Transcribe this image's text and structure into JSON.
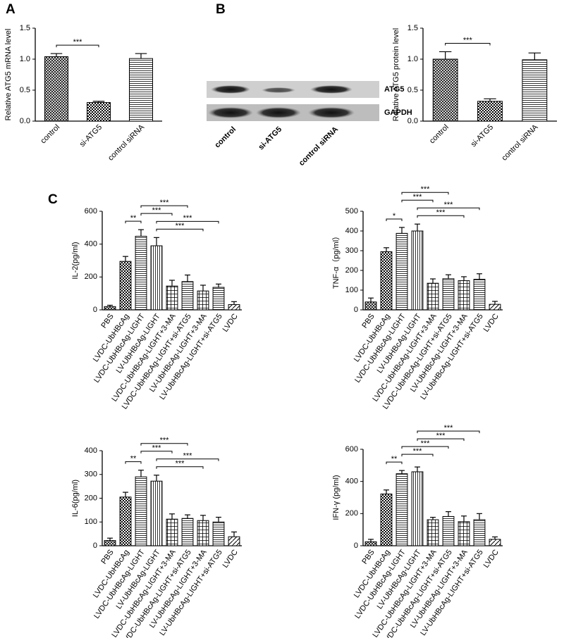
{
  "panels": [
    "A",
    "B",
    "C"
  ],
  "blot": {
    "bands": [
      "ATG5",
      "GAPDH"
    ],
    "lanes": [
      "control",
      "si-ATG5",
      "control siRNA"
    ]
  },
  "chart_data": [
    {
      "type": "bar",
      "ylabel": "Relative ATG5 mRNA level",
      "categories": [
        "control",
        "si-ATG5",
        "control siRNA"
      ],
      "values": [
        1.04,
        0.3,
        1.01
      ],
      "errors": [
        0.05,
        0.02,
        0.08
      ],
      "ylim": [
        0,
        1.5
      ],
      "yticks": [
        {
          "value": 0,
          "label": "0.0"
        },
        0.5,
        {
          "value": 1,
          "label": "1.0"
        },
        1.5
      ],
      "annotations": [
        {
          "between": [
            "control",
            "si-ATG5"
          ],
          "label": "***"
        }
      ]
    },
    {
      "type": "bar",
      "ylabel": "Relative ATG5 protein level",
      "categories": [
        "control",
        "si-ATG5",
        "control siRNA"
      ],
      "values": [
        1.0,
        0.32,
        0.99
      ],
      "errors": [
        0.12,
        0.04,
        0.11
      ],
      "ylim": [
        0,
        1.5
      ],
      "yticks": [
        {
          "value": 0,
          "label": "0.0"
        },
        0.5,
        {
          "value": 1,
          "label": "1.0"
        },
        1.5
      ],
      "annotations": [
        {
          "between": [
            "control",
            "si-ATG5"
          ],
          "label": "***"
        }
      ]
    },
    {
      "type": "bar",
      "ylabel": "IL-2(pg/ml)",
      "categories": [
        "PBS",
        "LVDC-UbHBcAg",
        "LVDC-UbHBcAg-LIGHT",
        "LV-UbHBcAg-LIGHT",
        "LVDC-UbHBcAg-LIGHT+3-MA",
        "LVDC-UbHBcAg-LIGHT+si-ATG5",
        "LV-UbHBcAg-LIGHT+3-MA",
        "LV-UbHBcAg-LIGHT+si-ATG5",
        "LVDC"
      ],
      "values": [
        20,
        295,
        448,
        390,
        145,
        172,
        115,
        137,
        32
      ],
      "errors": [
        8,
        30,
        40,
        50,
        35,
        40,
        35,
        20,
        18
      ],
      "ylim": [
        0,
        600
      ],
      "yticks": [
        0,
        200,
        400,
        600
      ],
      "annotations": [
        {
          "between": [
            "LVDC-UbHBcAg",
            "LVDC-UbHBcAg-LIGHT"
          ],
          "label": "**"
        },
        {
          "between": [
            "LV-UbHBcAg-LIGHT",
            "LV-UbHBcAg-LIGHT+3-MA"
          ],
          "label": "***"
        },
        {
          "between": [
            "LV-UbHBcAg-LIGHT",
            "LV-UbHBcAg-LIGHT+si-ATG5"
          ],
          "label": "***"
        },
        {
          "between": [
            "LVDC-UbHBcAg-LIGHT",
            "LVDC-UbHBcAg-LIGHT+3-MA"
          ],
          "label": "***"
        },
        {
          "between": [
            "LVDC-UbHBcAg-LIGHT",
            "LVDC-UbHBcAg-LIGHT+si-ATG5"
          ],
          "label": "***"
        }
      ]
    },
    {
      "type": "bar",
      "ylabel": "TNF-α（pg/ml）",
      "categories": [
        "PBS",
        "LVDC-UbHBcAg",
        "LVDC-UbHBcAg-LIGHT",
        "LV-UbHBcAg-LIGHT",
        "LVDC-UbHBcAg-LIGHT+3-MA",
        "LVDC-UbHBcAg-LIGHT+si-ATG5",
        "LV-UbHBcAg-LIGHT+3-MA",
        "LV-UbHBcAg-LIGHT+si-ATG5",
        "LVDC"
      ],
      "values": [
        40,
        295,
        388,
        400,
        135,
        158,
        148,
        155,
        28
      ],
      "errors": [
        20,
        20,
        30,
        35,
        22,
        20,
        20,
        28,
        15
      ],
      "ylim": [
        0,
        500
      ],
      "yticks": [
        0,
        100,
        200,
        300,
        400,
        500
      ],
      "annotations": [
        {
          "between": [
            "LVDC-UbHBcAg",
            "LVDC-UbHBcAg-LIGHT"
          ],
          "label": "*"
        },
        {
          "between": [
            "LV-UbHBcAg-LIGHT",
            "LV-UbHBcAg-LIGHT+3-MA"
          ],
          "label": "***"
        },
        {
          "between": [
            "LV-UbHBcAg-LIGHT",
            "LV-UbHBcAg-LIGHT+si-ATG5"
          ],
          "label": "***"
        },
        {
          "between": [
            "LVDC-UbHBcAg-LIGHT",
            "LVDC-UbHBcAg-LIGHT+3-MA"
          ],
          "label": "***"
        },
        {
          "between": [
            "LVDC-UbHBcAg-LIGHT",
            "LVDC-UbHBcAg-LIGHT+si-ATG5"
          ],
          "label": "***"
        }
      ]
    },
    {
      "type": "bar",
      "ylabel": "IL-6(pg/ml)",
      "categories": [
        "PBS",
        "LVDC-UbHBcAg",
        "LVDC-UbHBcAg-LIGHT",
        "LV-UbHBcAg-LIGHT",
        "LVDC-UbHBcAg-LIGHT+3-MA",
        "LVDC-UbHBcAg-LIGHT+si-ATG5",
        "LV-UbHBcAg-LIGHT+3-MA",
        "LV-UbHBcAg-LIGHT+si-ATG5",
        "LVDC"
      ],
      "values": [
        22,
        205,
        290,
        272,
        112,
        115,
        106,
        100,
        38
      ],
      "errors": [
        10,
        20,
        28,
        25,
        22,
        15,
        22,
        20,
        20
      ],
      "ylim": [
        0,
        400
      ],
      "yticks": [
        0,
        100,
        200,
        300,
        400
      ],
      "annotations": [
        {
          "between": [
            "LVDC-UbHBcAg",
            "LVDC-UbHBcAg-LIGHT"
          ],
          "label": "**"
        },
        {
          "between": [
            "LV-UbHBcAg-LIGHT",
            "LV-UbHBcAg-LIGHT+3-MA"
          ],
          "label": "***"
        },
        {
          "between": [
            "LV-UbHBcAg-LIGHT",
            "LV-UbHBcAg-LIGHT+si-ATG5"
          ],
          "label": "***"
        },
        {
          "between": [
            "LVDC-UbHBcAg-LIGHT",
            "LVDC-UbHBcAg-LIGHT+3-MA"
          ],
          "label": "***"
        },
        {
          "between": [
            "LVDC-UbHBcAg-LIGHT",
            "LVDC-UbHBcAg-LIGHT+si-ATG5"
          ],
          "label": "***"
        }
      ]
    },
    {
      "type": "bar",
      "ylabel": "IFN-γ (pg/ml)",
      "categories": [
        "PBS",
        "LVDC-UbHBcAg",
        "LVDC-UbHBcAg-LIGHT",
        "LV-UbHBcAg-LIGHT",
        "LVDC-UbHBcAg-LIGHT+3-MA",
        "LVDC-UbHBcAg-LIGHT+si-ATG5",
        "LV-UbHBcAg-LIGHT+3-MA",
        "LV-UbHBcAg-LIGHT+si-ATG5",
        "LVDC"
      ],
      "values": [
        25,
        322,
        448,
        460,
        162,
        182,
        150,
        162,
        40
      ],
      "errors": [
        15,
        25,
        20,
        30,
        15,
        30,
        35,
        38,
        15
      ],
      "ylim": [
        0,
        600
      ],
      "yticks": [
        0,
        200,
        400,
        600
      ],
      "annotations": [
        {
          "between": [
            "LVDC-UbHBcAg",
            "LVDC-UbHBcAg-LIGHT"
          ],
          "label": "**"
        },
        {
          "between": [
            "LVDC-UbHBcAg-LIGHT",
            "LVDC-UbHBcAg-LIGHT+3-MA"
          ],
          "label": "***"
        },
        {
          "between": [
            "LVDC-UbHBcAg-LIGHT",
            "LVDC-UbHBcAg-LIGHT+si-ATG5"
          ],
          "label": "***"
        },
        {
          "between": [
            "LV-UbHBcAg-LIGHT",
            "LV-UbHBcAg-LIGHT+3-MA"
          ],
          "label": "***"
        },
        {
          "between": [
            "LV-UbHBcAg-LIGHT",
            "LV-UbHBcAg-LIGHT+si-ATG5"
          ],
          "label": "***"
        }
      ]
    }
  ]
}
